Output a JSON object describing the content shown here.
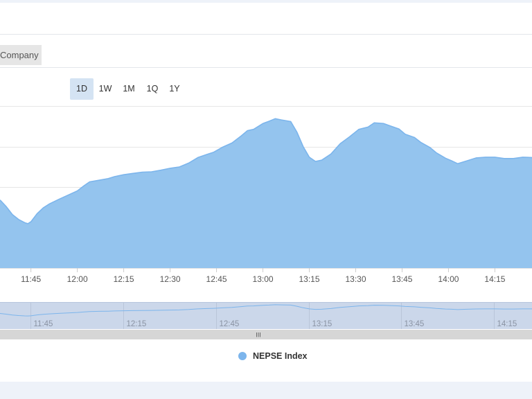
{
  "company_tab": {
    "label": "Company"
  },
  "range_selector": {
    "buttons": [
      {
        "label": "1D",
        "active": true
      },
      {
        "label": "1W",
        "active": false
      },
      {
        "label": "1M",
        "active": false
      },
      {
        "label": "1Q",
        "active": false
      },
      {
        "label": "1Y",
        "active": false
      }
    ],
    "active_color": "#d4e3f3"
  },
  "navigator": {
    "tick_labels": [
      "11:45",
      "12:15",
      "12:45",
      "13:15",
      "13:45",
      "14:15"
    ],
    "scrollbar_grip": "III"
  },
  "colors": {
    "area_fill": "#94c4ee",
    "line": "#7cb5ec",
    "navigator_bg": "#cbd7ea",
    "scrollbar": "#d6d6d6",
    "page_band": "#eef2f9"
  },
  "chart_data": {
    "type": "area",
    "title": "",
    "xlabel": "",
    "ylabel": "",
    "x_ticks": [
      "11:45",
      "12:00",
      "12:15",
      "12:30",
      "12:45",
      "13:00",
      "13:15",
      "13:30",
      "13:45",
      "14:00",
      "14:15"
    ],
    "xlim": [
      "11:35",
      "14:27"
    ],
    "y_gridlines": 5,
    "grid": true,
    "legend": {
      "position": "bottom-center"
    },
    "series": [
      {
        "name": "NEPSE Index",
        "color": "#7cb5ec",
        "points": [
          [
            "11:35",
            21
          ],
          [
            "11:37",
            19
          ],
          [
            "11:39",
            16.5
          ],
          [
            "11:41",
            15
          ],
          [
            "11:43",
            14
          ],
          [
            "11:44",
            13.7
          ],
          [
            "11:45",
            14.3
          ],
          [
            "11:47",
            16.8
          ],
          [
            "11:49",
            18.6
          ],
          [
            "11:51",
            19.8
          ],
          [
            "11:54",
            21.2
          ],
          [
            "11:57",
            22.5
          ],
          [
            "12:00",
            23.8
          ],
          [
            "12:02",
            25.3
          ],
          [
            "12:04",
            26.6
          ],
          [
            "12:07",
            27.1
          ],
          [
            "12:10",
            27.6
          ],
          [
            "12:12",
            28.2
          ],
          [
            "12:15",
            28.8
          ],
          [
            "12:18",
            29.2
          ],
          [
            "12:21",
            29.6
          ],
          [
            "12:24",
            29.7
          ],
          [
            "12:27",
            30.2
          ],
          [
            "12:30",
            30.8
          ],
          [
            "12:33",
            31.2
          ],
          [
            "12:36",
            32.4
          ],
          [
            "12:39",
            34.1
          ],
          [
            "12:42",
            35.1
          ],
          [
            "12:44",
            35.7
          ],
          [
            "12:47",
            37.3
          ],
          [
            "12:50",
            38.6
          ],
          [
            "12:53",
            40.8
          ],
          [
            "12:55",
            42.4
          ],
          [
            "12:57",
            42.8
          ],
          [
            "13:00",
            44.6
          ],
          [
            "13:02",
            45.3
          ],
          [
            "13:04",
            46.1
          ],
          [
            "13:06",
            45.7
          ],
          [
            "13:09",
            45.2
          ],
          [
            "13:11",
            41.9
          ],
          [
            "13:13",
            37.5
          ],
          [
            "13:15",
            34.2
          ],
          [
            "13:17",
            32.9
          ],
          [
            "13:19",
            33.3
          ],
          [
            "13:22",
            35.2
          ],
          [
            "13:25",
            38.4
          ],
          [
            "13:28",
            40.5
          ],
          [
            "13:31",
            42.8
          ],
          [
            "13:34",
            43.5
          ],
          [
            "13:36",
            44.8
          ],
          [
            "13:39",
            44.6
          ],
          [
            "13:41",
            43.9
          ],
          [
            "13:44",
            42.9
          ],
          [
            "13:46",
            41.3
          ],
          [
            "13:49",
            40.3
          ],
          [
            "13:51",
            38.8
          ],
          [
            "13:54",
            37.2
          ],
          [
            "13:56",
            35.6
          ],
          [
            "13:59",
            33.9
          ],
          [
            "14:01",
            33.1
          ],
          [
            "14:03",
            32.2
          ],
          [
            "14:06",
            33.1
          ],
          [
            "14:09",
            34.0
          ],
          [
            "14:12",
            34.2
          ],
          [
            "14:15",
            34.2
          ],
          [
            "14:18",
            33.8
          ],
          [
            "14:21",
            33.8
          ],
          [
            "14:24",
            34.2
          ],
          [
            "14:27",
            34.1
          ]
        ]
      }
    ]
  }
}
